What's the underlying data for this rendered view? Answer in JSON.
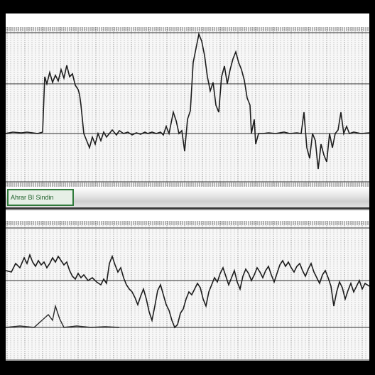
{
  "window": {
    "background": "#000000",
    "accent": "#2f7a3a"
  },
  "separator": {
    "tab_label": "Ahrar BI Sindin"
  },
  "panels": [
    {
      "name": "upper-waveform-panel",
      "trace": [
        [
          0,
          150
        ],
        [
          10,
          148
        ],
        [
          22,
          149
        ],
        [
          30,
          148
        ],
        [
          38,
          149
        ],
        [
          45,
          150
        ],
        [
          52,
          148
        ],
        [
          55,
          70
        ],
        [
          58,
          80
        ],
        [
          62,
          64
        ],
        [
          66,
          78
        ],
        [
          70,
          68
        ],
        [
          74,
          76
        ],
        [
          78,
          60
        ],
        [
          82,
          72
        ],
        [
          86,
          54
        ],
        [
          90,
          70
        ],
        [
          94,
          66
        ],
        [
          98,
          82
        ],
        [
          102,
          88
        ],
        [
          104,
          95
        ],
        [
          106,
          110
        ],
        [
          110,
          150
        ],
        [
          114,
          160
        ],
        [
          118,
          170
        ],
        [
          122,
          155
        ],
        [
          126,
          165
        ],
        [
          130,
          150
        ],
        [
          134,
          160
        ],
        [
          138,
          148
        ],
        [
          142,
          155
        ],
        [
          146,
          150
        ],
        [
          150,
          145
        ],
        [
          156,
          152
        ],
        [
          160,
          146
        ],
        [
          166,
          150
        ],
        [
          172,
          148
        ],
        [
          178,
          152
        ],
        [
          184,
          149
        ],
        [
          190,
          151
        ],
        [
          196,
          148
        ],
        [
          200,
          150
        ],
        [
          206,
          148
        ],
        [
          212,
          150
        ],
        [
          218,
          148
        ],
        [
          222,
          152
        ],
        [
          226,
          140
        ],
        [
          230,
          150
        ],
        [
          236,
          120
        ],
        [
          240,
          132
        ],
        [
          244,
          150
        ],
        [
          248,
          146
        ],
        [
          252,
          175
        ],
        [
          256,
          130
        ],
        [
          260,
          118
        ],
        [
          264,
          50
        ],
        [
          268,
          30
        ],
        [
          272,
          10
        ],
        [
          276,
          20
        ],
        [
          280,
          40
        ],
        [
          284,
          70
        ],
        [
          288,
          90
        ],
        [
          292,
          78
        ],
        [
          296,
          110
        ],
        [
          300,
          120
        ],
        [
          304,
          70
        ],
        [
          308,
          55
        ],
        [
          312,
          80
        ],
        [
          316,
          60
        ],
        [
          320,
          45
        ],
        [
          324,
          35
        ],
        [
          328,
          50
        ],
        [
          332,
          60
        ],
        [
          336,
          75
        ],
        [
          340,
          100
        ],
        [
          344,
          110
        ],
        [
          346,
          150
        ],
        [
          350,
          130
        ],
        [
          352,
          165
        ],
        [
          356,
          150
        ],
        [
          362,
          150
        ],
        [
          370,
          149
        ],
        [
          380,
          150
        ],
        [
          392,
          148
        ],
        [
          400,
          150
        ],
        [
          410,
          149
        ],
        [
          416,
          150
        ],
        [
          420,
          120
        ],
        [
          424,
          170
        ],
        [
          428,
          185
        ],
        [
          432,
          150
        ],
        [
          436,
          160
        ],
        [
          440,
          200
        ],
        [
          444,
          165
        ],
        [
          448,
          180
        ],
        [
          452,
          190
        ],
        [
          456,
          150
        ],
        [
          460,
          170
        ],
        [
          464,
          150
        ],
        [
          468,
          145
        ],
        [
          472,
          120
        ],
        [
          476,
          150
        ],
        [
          480,
          140
        ],
        [
          484,
          150
        ],
        [
          490,
          148
        ],
        [
          500,
          150
        ],
        [
          512,
          149
        ]
      ]
    },
    {
      "name": "lower-waveform-panel",
      "trace": [
        [
          0,
          70
        ],
        [
          8,
          72
        ],
        [
          14,
          60
        ],
        [
          20,
          66
        ],
        [
          26,
          52
        ],
        [
          30,
          60
        ],
        [
          34,
          48
        ],
        [
          38,
          58
        ],
        [
          42,
          64
        ],
        [
          46,
          56
        ],
        [
          50,
          62
        ],
        [
          54,
          58
        ],
        [
          58,
          66
        ],
        [
          62,
          60
        ],
        [
          66,
          52
        ],
        [
          70,
          58
        ],
        [
          74,
          50
        ],
        [
          78,
          56
        ],
        [
          82,
          62
        ],
        [
          86,
          58
        ],
        [
          90,
          70
        ],
        [
          94,
          78
        ],
        [
          98,
          82
        ],
        [
          102,
          74
        ],
        [
          106,
          80
        ],
        [
          110,
          76
        ],
        [
          116,
          84
        ],
        [
          122,
          80
        ],
        [
          128,
          86
        ],
        [
          134,
          90
        ],
        [
          138,
          82
        ],
        [
          142,
          88
        ],
        [
          146,
          60
        ],
        [
          150,
          50
        ],
        [
          154,
          62
        ],
        [
          158,
          72
        ],
        [
          162,
          66
        ],
        [
          166,
          80
        ],
        [
          170,
          90
        ],
        [
          174,
          96
        ],
        [
          178,
          100
        ],
        [
          182,
          108
        ],
        [
          186,
          118
        ],
        [
          190,
          106
        ],
        [
          194,
          96
        ],
        [
          198,
          110
        ],
        [
          202,
          128
        ],
        [
          206,
          140
        ],
        [
          210,
          120
        ],
        [
          214,
          98
        ],
        [
          218,
          90
        ],
        [
          222,
          104
        ],
        [
          226,
          118
        ],
        [
          230,
          126
        ],
        [
          234,
          140
        ],
        [
          238,
          150
        ],
        [
          242,
          146
        ],
        [
          246,
          130
        ],
        [
          250,
          124
        ],
        [
          254,
          110
        ],
        [
          258,
          100
        ],
        [
          262,
          104
        ],
        [
          266,
          96
        ],
        [
          270,
          88
        ],
        [
          274,
          94
        ],
        [
          278,
          110
        ],
        [
          282,
          120
        ],
        [
          286,
          100
        ],
        [
          290,
          90
        ],
        [
          294,
          80
        ],
        [
          298,
          86
        ],
        [
          302,
          74
        ],
        [
          306,
          66
        ],
        [
          310,
          78
        ],
        [
          314,
          90
        ],
        [
          318,
          80
        ],
        [
          322,
          70
        ],
        [
          326,
          86
        ],
        [
          330,
          96
        ],
        [
          334,
          78
        ],
        [
          338,
          68
        ],
        [
          342,
          74
        ],
        [
          346,
          84
        ],
        [
          350,
          76
        ],
        [
          354,
          66
        ],
        [
          358,
          72
        ],
        [
          362,
          80
        ],
        [
          366,
          70
        ],
        [
          370,
          64
        ],
        [
          374,
          76
        ],
        [
          378,
          86
        ],
        [
          382,
          74
        ],
        [
          386,
          62
        ],
        [
          390,
          56
        ],
        [
          394,
          64
        ],
        [
          398,
          58
        ],
        [
          402,
          66
        ],
        [
          406,
          72
        ],
        [
          410,
          64
        ],
        [
          414,
          60
        ],
        [
          418,
          70
        ],
        [
          422,
          78
        ],
        [
          426,
          68
        ],
        [
          430,
          60
        ],
        [
          434,
          72
        ],
        [
          438,
          80
        ],
        [
          442,
          88
        ],
        [
          446,
          76
        ],
        [
          450,
          70
        ],
        [
          454,
          80
        ],
        [
          458,
          92
        ],
        [
          462,
          120
        ],
        [
          466,
          100
        ],
        [
          470,
          86
        ],
        [
          474,
          94
        ],
        [
          478,
          110
        ],
        [
          482,
          98
        ],
        [
          486,
          88
        ],
        [
          490,
          100
        ],
        [
          494,
          92
        ],
        [
          498,
          84
        ],
        [
          502,
          96
        ],
        [
          506,
          88
        ],
        [
          512,
          92
        ]
      ],
      "trace2": [
        [
          0,
          150
        ],
        [
          20,
          148
        ],
        [
          40,
          150
        ],
        [
          60,
          132
        ],
        [
          66,
          140
        ],
        [
          70,
          120
        ],
        [
          76,
          138
        ],
        [
          82,
          150
        ],
        [
          100,
          148
        ],
        [
          120,
          150
        ],
        [
          140,
          149
        ],
        [
          160,
          150
        ]
      ]
    }
  ]
}
